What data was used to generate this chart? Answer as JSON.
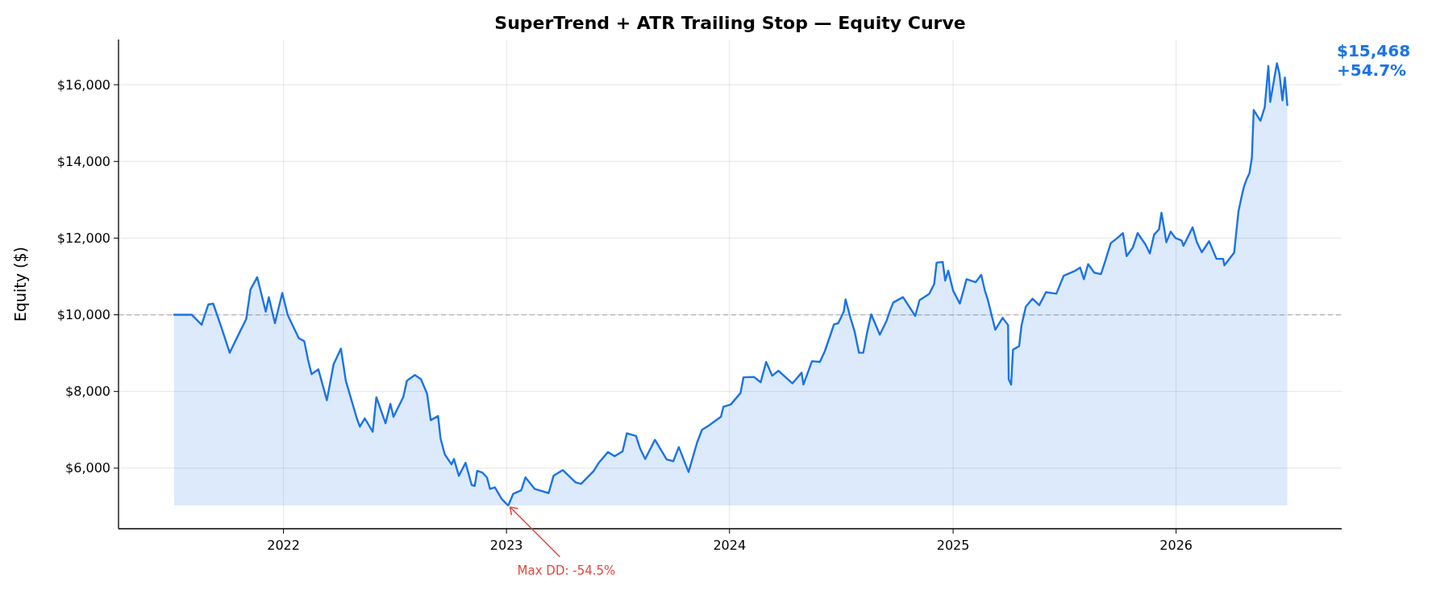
{
  "chart_data": {
    "type": "area",
    "title": "SuperTrend + ATR Trailing Stop — Equity Curve",
    "ylabel": "Equity ($)",
    "xlim": [
      "2021-04-06",
      "2026-09-29"
    ],
    "xticks": [
      {
        "value": "2022-01-01",
        "label": "2022"
      },
      {
        "value": "2023-01-01",
        "label": "2023"
      },
      {
        "value": "2024-01-01",
        "label": "2024"
      },
      {
        "value": "2025-01-01",
        "label": "2025"
      },
      {
        "value": "2026-01-01",
        "label": "2026"
      }
    ],
    "ylim": [
      4420,
      17180
    ],
    "yticks": [
      {
        "value": 6000,
        "label": "$6,000"
      },
      {
        "value": 8000,
        "label": "$8,000"
      },
      {
        "value": 10000,
        "label": "$10,000"
      },
      {
        "value": 12000,
        "label": "$12,000"
      },
      {
        "value": 14000,
        "label": "$14,000"
      },
      {
        "value": 16000,
        "label": "$16,000"
      }
    ],
    "grid": true,
    "line_style": "solid",
    "ref_lines": [
      {
        "axis": "y",
        "value": 10000,
        "color": "#b0b0b0",
        "line_style": "dashed"
      }
    ],
    "annotations": [
      {
        "text": "Max DD: -54.5%",
        "x": "2023-01-04",
        "y": 5030
      },
      "$15,468\n+54.7%"
    ],
    "series": [
      {
        "color": "#1a73e8",
        "x": [
          "2021-07-06",
          "2021-08-04",
          "2021-08-20",
          "2021-08-31",
          "2021-09-08",
          "2021-09-21",
          "2021-10-05",
          "2021-10-14",
          "2021-11-01",
          "2021-11-08",
          "2021-11-19",
          "2021-12-03",
          "2021-12-08",
          "2021-12-18",
          "2021-12-30",
          "2022-01-08",
          "2022-01-26",
          "2022-02-04",
          "2022-02-10",
          "2022-02-16",
          "2022-02-27",
          "2022-03-13",
          "2022-03-24",
          "2022-04-05",
          "2022-04-13",
          "2022-05-01",
          "2022-05-06",
          "2022-05-14",
          "2022-05-27",
          "2022-06-02",
          "2022-06-17",
          "2022-06-25",
          "2022-06-30",
          "2022-07-16",
          "2022-07-22",
          "2022-08-04",
          "2022-08-14",
          "2022-08-24",
          "2022-08-30",
          "2022-09-11",
          "2022-09-15",
          "2022-09-22",
          "2022-10-03",
          "2022-10-07",
          "2022-10-15",
          "2022-10-26",
          "2022-11-05",
          "2022-11-10",
          "2022-11-14",
          "2022-11-22",
          "2022-11-30",
          "2022-12-05",
          "2022-12-13",
          "2022-12-24",
          "2023-01-01",
          "2023-01-04",
          "2023-01-12",
          "2023-01-25",
          "2023-02-01",
          "2023-02-16",
          "2023-02-24",
          "2023-03-11",
          "2023-03-19",
          "2023-04-03",
          "2023-04-24",
          "2023-05-03",
          "2023-05-24",
          "2023-06-01",
          "2023-06-16",
          "2023-06-27",
          "2023-07-10",
          "2023-07-17",
          "2023-08-01",
          "2023-08-08",
          "2023-08-16",
          "2023-09-01",
          "2023-09-20",
          "2023-10-01",
          "2023-10-10",
          "2023-10-26",
          "2023-11-01",
          "2023-11-09",
          "2023-11-17",
          "2023-11-29",
          "2023-12-18",
          "2023-12-22",
          "2024-01-03",
          "2024-01-19",
          "2024-01-24",
          "2024-02-10",
          "2024-02-21",
          "2024-03-01",
          "2024-03-11",
          "2024-03-21",
          "2024-04-13",
          "2024-04-28",
          "2024-05-01",
          "2024-05-15",
          "2024-05-28",
          "2024-06-05",
          "2024-06-16",
          "2024-06-20",
          "2024-06-27",
          "2024-07-06",
          "2024-07-09",
          "2024-07-17",
          "2024-07-24",
          "2024-07-31",
          "2024-08-07",
          "2024-08-13",
          "2024-08-20",
          "2024-09-03",
          "2024-09-14",
          "2024-09-20",
          "2024-09-25",
          "2024-10-11",
          "2024-10-31",
          "2024-11-07",
          "2024-11-23",
          "2024-12-01",
          "2024-12-05",
          "2024-12-15",
          "2024-12-19",
          "2024-12-24",
          "2025-01-01",
          "2025-01-12",
          "2025-01-23",
          "2025-02-07",
          "2025-02-16",
          "2025-02-22",
          "2025-02-27",
          "2025-03-05",
          "2025-03-11",
          "2025-03-23",
          "2025-04-01",
          "2025-04-02",
          "2025-04-06",
          "2025-04-09",
          "2025-04-19",
          "2025-04-23",
          "2025-04-30",
          "2025-05-11",
          "2025-05-22",
          "2025-06-02",
          "2025-06-19",
          "2025-07-01",
          "2025-07-20",
          "2025-07-28",
          "2025-08-03",
          "2025-08-10",
          "2025-08-20",
          "2025-08-31",
          "2025-09-07",
          "2025-09-16",
          "2025-09-25",
          "2025-10-06",
          "2025-10-12",
          "2025-10-22",
          "2025-10-30",
          "2025-11-12",
          "2025-11-19",
          "2025-11-26",
          "2025-12-04",
          "2025-12-08",
          "2025-12-12",
          "2025-12-16",
          "2025-12-23",
          "2025-12-31",
          "2026-01-10",
          "2026-01-13",
          "2026-01-28",
          "2026-02-04",
          "2026-02-12",
          "2026-02-24",
          "2026-03-08",
          "2026-03-19",
          "2026-03-21",
          "2026-04-06",
          "2026-04-13",
          "2026-04-18",
          "2026-04-22",
          "2026-04-26",
          "2026-05-01",
          "2026-05-05",
          "2026-05-08",
          "2026-05-19",
          "2026-05-26",
          "2026-06-01",
          "2026-06-04",
          "2026-06-15",
          "2026-06-19",
          "2026-06-24",
          "2026-06-28",
          "2026-07-02"
        ],
        "values": [
          10000,
          10000,
          9740,
          10270,
          10290,
          9690,
          9010,
          9310,
          9890,
          10660,
          10980,
          10080,
          10460,
          9780,
          10570,
          9990,
          9390,
          9310,
          8840,
          8450,
          8580,
          7770,
          8710,
          9120,
          8280,
          7300,
          7080,
          7300,
          6950,
          7850,
          7170,
          7680,
          7340,
          7850,
          8280,
          8430,
          8320,
          7940,
          7250,
          7360,
          6780,
          6360,
          6100,
          6240,
          5800,
          6140,
          5560,
          5540,
          5930,
          5890,
          5760,
          5460,
          5500,
          5200,
          5070,
          5030,
          5330,
          5420,
          5760,
          5460,
          5420,
          5350,
          5800,
          5950,
          5630,
          5590,
          5930,
          6140,
          6420,
          6310,
          6440,
          6910,
          6840,
          6500,
          6240,
          6740,
          6230,
          6180,
          6550,
          5900,
          6230,
          6670,
          7000,
          7120,
          7340,
          7600,
          7660,
          7960,
          8370,
          8380,
          8240,
          8770,
          8410,
          8540,
          8210,
          8490,
          8180,
          8790,
          8770,
          9050,
          9560,
          9750,
          9780,
          10080,
          10400,
          9920,
          9550,
          9010,
          9010,
          9520,
          10010,
          9480,
          9840,
          10120,
          10320,
          10460,
          9970,
          10380,
          10550,
          10800,
          11360,
          11380,
          10890,
          11150,
          10630,
          10290,
          10930,
          10850,
          11040,
          10630,
          10380,
          9990,
          9610,
          9920,
          9730,
          8320,
          8180,
          9090,
          9180,
          9730,
          10210,
          10420,
          10250,
          10590,
          10550,
          11020,
          11150,
          11230,
          10930,
          11320,
          11100,
          11060,
          11400,
          11870,
          11980,
          12130,
          11530,
          11750,
          12130,
          11830,
          11600,
          12090,
          12230,
          12660,
          12300,
          11890,
          12170,
          12000,
          11940,
          11800,
          12280,
          11890,
          11630,
          11920,
          11460,
          11460,
          11290,
          11620,
          12690,
          13070,
          13340,
          13520,
          13690,
          14100,
          15340,
          15060,
          15410,
          16490,
          15550,
          16560,
          16300,
          15590,
          16190,
          15470
        ]
      }
    ]
  }
}
